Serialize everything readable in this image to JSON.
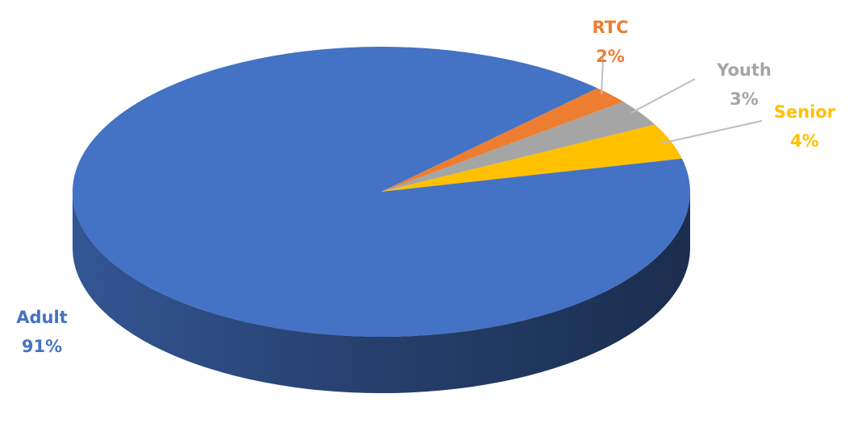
{
  "chart_data": {
    "type": "pie",
    "categories": [
      "RTC",
      "Youth",
      "Senior",
      "Adult"
    ],
    "values": [
      2,
      3,
      4,
      91
    ],
    "value_labels": [
      "2%",
      "3%",
      "4%",
      "91%"
    ],
    "colors": [
      "#ed7d31",
      "#a5a5a5",
      "#ffc000",
      "#4472c4"
    ]
  }
}
